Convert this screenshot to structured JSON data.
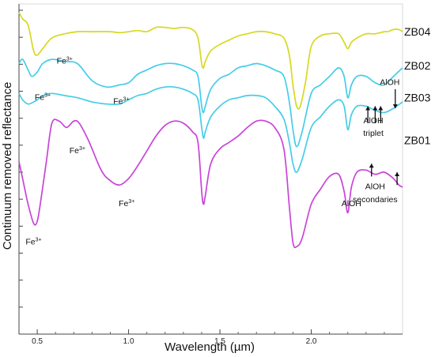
{
  "chart_data": {
    "type": "line",
    "title": "",
    "xlabel": "Wavelength (µm)",
    "ylabel": "Continuum removed reflectance",
    "xlim": [
      0.4,
      2.5
    ],
    "xticks": [
      0.5,
      1.0,
      1.5,
      2.0
    ],
    "xtick_labels": [
      "0.5",
      "1.0",
      "1.5",
      "2.0"
    ],
    "y_ticks_count": 13,
    "series": [
      {
        "name": "ZB04",
        "color": "#d8d820",
        "x": [
          0.4,
          0.42,
          0.45,
          0.48,
          0.5,
          0.53,
          0.58,
          0.65,
          0.72,
          0.8,
          0.9,
          0.95,
          1.0,
          1.05,
          1.1,
          1.15,
          1.2,
          1.25,
          1.3,
          1.35,
          1.38,
          1.4,
          1.41,
          1.42,
          1.45,
          1.5,
          1.55,
          1.6,
          1.65,
          1.7,
          1.75,
          1.8,
          1.85,
          1.88,
          1.9,
          1.92,
          1.94,
          1.97,
          2.0,
          2.05,
          2.1,
          2.15,
          2.18,
          2.2,
          2.22,
          2.25,
          2.3,
          2.35,
          2.4,
          2.42,
          2.45,
          2.48,
          2.5
        ],
        "y": [
          0.96,
          0.93,
          0.9,
          0.78,
          0.76,
          0.79,
          0.84,
          0.86,
          0.87,
          0.87,
          0.87,
          0.865,
          0.87,
          0.875,
          0.87,
          0.89,
          0.89,
          0.885,
          0.89,
          0.88,
          0.84,
          0.72,
          0.7,
          0.73,
          0.78,
          0.81,
          0.83,
          0.85,
          0.86,
          0.87,
          0.87,
          0.86,
          0.84,
          0.76,
          0.62,
          0.52,
          0.52,
          0.64,
          0.8,
          0.85,
          0.86,
          0.86,
          0.82,
          0.79,
          0.82,
          0.84,
          0.86,
          0.86,
          0.87,
          0.87,
          0.88,
          0.88,
          0.87
        ]
      },
      {
        "name": "ZB02",
        "color": "#45cde8",
        "x": [
          0.4,
          0.42,
          0.45,
          0.47,
          0.5,
          0.53,
          0.58,
          0.65,
          0.72,
          0.8,
          0.88,
          0.95,
          1.0,
          1.05,
          1.1,
          1.15,
          1.2,
          1.25,
          1.3,
          1.35,
          1.38,
          1.4,
          1.41,
          1.42,
          1.45,
          1.5,
          1.55,
          1.6,
          1.65,
          1.7,
          1.75,
          1.8,
          1.85,
          1.88,
          1.9,
          1.92,
          1.95,
          2.0,
          2.05,
          2.1,
          2.15,
          2.18,
          2.2,
          2.22,
          2.25,
          2.3,
          2.35,
          2.4,
          2.45,
          2.5
        ],
        "y": [
          0.72,
          0.74,
          0.69,
          0.66,
          0.68,
          0.72,
          0.74,
          0.73,
          0.72,
          0.64,
          0.61,
          0.62,
          0.63,
          0.67,
          0.69,
          0.71,
          0.72,
          0.72,
          0.71,
          0.69,
          0.66,
          0.52,
          0.49,
          0.52,
          0.6,
          0.65,
          0.67,
          0.7,
          0.71,
          0.72,
          0.71,
          0.69,
          0.66,
          0.54,
          0.41,
          0.33,
          0.4,
          0.58,
          0.62,
          0.66,
          0.7,
          0.66,
          0.56,
          0.62,
          0.66,
          0.66,
          0.63,
          0.62,
          0.66,
          0.7
        ]
      },
      {
        "name": "ZB03",
        "color": "#45cde8",
        "x": [
          0.4,
          0.42,
          0.45,
          0.48,
          0.5,
          0.53,
          0.58,
          0.65,
          0.72,
          0.8,
          0.88,
          0.95,
          1.0,
          1.05,
          1.1,
          1.15,
          1.2,
          1.25,
          1.3,
          1.35,
          1.38,
          1.4,
          1.41,
          1.42,
          1.45,
          1.5,
          1.55,
          1.6,
          1.65,
          1.7,
          1.75,
          1.8,
          1.85,
          1.88,
          1.9,
          1.92,
          1.95,
          2.0,
          2.05,
          2.1,
          2.15,
          2.18,
          2.2,
          2.22,
          2.25,
          2.3,
          2.35,
          2.4,
          2.45,
          2.5
        ],
        "y": [
          0.58,
          0.55,
          0.53,
          0.54,
          0.55,
          0.57,
          0.58,
          0.57,
          0.56,
          0.54,
          0.53,
          0.53,
          0.55,
          0.57,
          0.58,
          0.6,
          0.61,
          0.61,
          0.6,
          0.58,
          0.55,
          0.42,
          0.37,
          0.4,
          0.47,
          0.52,
          0.55,
          0.56,
          0.57,
          0.57,
          0.56,
          0.52,
          0.46,
          0.35,
          0.25,
          0.21,
          0.27,
          0.42,
          0.47,
          0.52,
          0.55,
          0.52,
          0.41,
          0.48,
          0.52,
          0.52,
          0.5,
          0.49,
          0.51,
          0.54
        ]
      },
      {
        "name": "ZB01",
        "color": "#c844d8",
        "x": [
          0.4,
          0.42,
          0.45,
          0.48,
          0.5,
          0.52,
          0.55,
          0.58,
          0.62,
          0.66,
          0.7,
          0.73,
          0.78,
          0.85,
          0.9,
          0.95,
          1.0,
          1.05,
          1.1,
          1.15,
          1.2,
          1.25,
          1.3,
          1.35,
          1.38,
          1.4,
          1.41,
          1.42,
          1.45,
          1.5,
          1.55,
          1.6,
          1.65,
          1.7,
          1.75,
          1.8,
          1.85,
          1.88,
          1.9,
          1.92,
          1.95,
          2.0,
          2.05,
          2.1,
          2.15,
          2.18,
          2.2,
          2.22,
          2.25,
          2.3,
          2.35,
          2.4,
          2.45,
          2.48,
          2.5
        ],
        "y": [
          0.26,
          0.18,
          0.06,
          -0.03,
          -0.02,
          0.08,
          0.26,
          0.44,
          0.45,
          0.42,
          0.45,
          0.44,
          0.36,
          0.22,
          0.17,
          0.15,
          0.18,
          0.24,
          0.31,
          0.38,
          0.43,
          0.45,
          0.44,
          0.4,
          0.35,
          0.12,
          0.06,
          0.1,
          0.25,
          0.32,
          0.35,
          0.38,
          0.42,
          0.45,
          0.45,
          0.42,
          0.32,
          0.05,
          -0.12,
          -0.14,
          -0.1,
          0.06,
          0.13,
          0.19,
          0.2,
          0.12,
          0.02,
          0.14,
          0.21,
          0.22,
          0.2,
          0.21,
          0.18,
          0.15,
          0.14
        ]
      }
    ],
    "annotations": [
      {
        "kind": "fe3",
        "x": 0.53,
        "y": 0.55
      },
      {
        "kind": "fe3",
        "x": 0.65,
        "y": 0.72
      },
      {
        "kind": "fe3",
        "x": 0.96,
        "y": 0.53
      },
      {
        "kind": "fe3",
        "x": 0.72,
        "y": 0.3
      },
      {
        "kind": "fe3",
        "x": 0.99,
        "y": 0.05
      },
      {
        "kind": "fe3",
        "x": 0.48,
        "y": -0.13
      },
      {
        "kind": "text",
        "text": "AlOH",
        "x": 2.22,
        "y": 0.05
      },
      {
        "kind": "text",
        "text": "AlOH",
        "x": 2.43,
        "y": 0.62
      },
      {
        "kind": "text",
        "text": "AlOH",
        "x": 2.34,
        "y": 0.44
      },
      {
        "kind": "text",
        "text": "triplet",
        "x": 2.34,
        "y": 0.38
      },
      {
        "kind": "text",
        "text": "AlOH",
        "x": 2.35,
        "y": 0.13
      },
      {
        "kind": "text",
        "text": "secondaries",
        "x": 2.35,
        "y": 0.07
      }
    ],
    "arrows": [
      {
        "x": 2.31,
        "y_from": 0.44,
        "y_to": 0.52
      },
      {
        "x": 2.35,
        "y_from": 0.44,
        "y_to": 0.52
      },
      {
        "x": 2.38,
        "y_from": 0.44,
        "y_to": 0.52
      },
      {
        "x": 2.46,
        "y_from": 0.6,
        "y_to": 0.51
      },
      {
        "x": 2.33,
        "y_from": 0.19,
        "y_to": 0.25
      },
      {
        "x": 2.47,
        "y_from": 0.15,
        "y_to": 0.21
      }
    ],
    "series_label_y": {
      "ZB04": 0.87,
      "ZB02": 0.71,
      "ZB03": 0.56,
      "ZB01": 0.36
    },
    "fe3_base": "Fe",
    "fe3_sup": "3+"
  }
}
